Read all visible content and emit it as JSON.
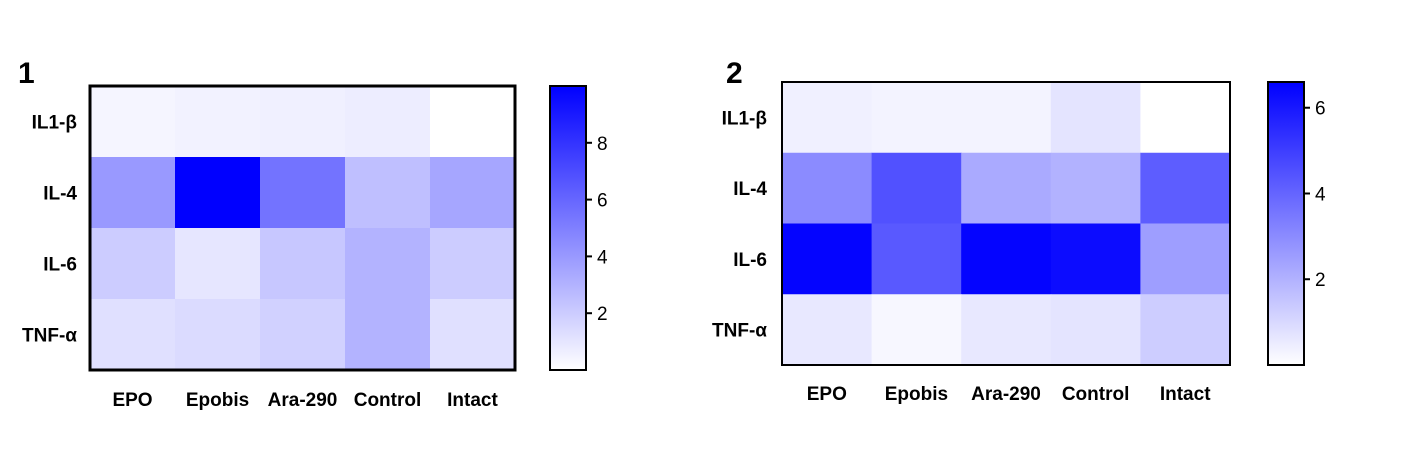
{
  "chart_data": [
    {
      "type": "heatmap",
      "panel_label": "1",
      "rows": [
        "IL1-β",
        "IL-4",
        "IL-6",
        "TNF-α"
      ],
      "columns": [
        "EPO",
        "Epobis",
        "Ara-290",
        "Control",
        "Intact"
      ],
      "values": [
        [
          0.4,
          0.5,
          0.6,
          0.7,
          0.0
        ],
        [
          4.0,
          10.0,
          5.5,
          2.5,
          3.5
        ],
        [
          2.0,
          1.0,
          2.2,
          3.0,
          2.0
        ],
        [
          1.2,
          1.4,
          1.8,
          3.0,
          1.2
        ]
      ],
      "colorbar": {
        "min": 0,
        "max": 10,
        "ticks": [
          2,
          4,
          6,
          8
        ]
      },
      "color_low": "#ffffff",
      "color_high": "#0000ff"
    },
    {
      "type": "heatmap",
      "panel_label": "2",
      "rows": [
        "IL1-β",
        "IL-4",
        "IL-6",
        "TNF-α"
      ],
      "columns": [
        "EPO",
        "Epobis",
        "Ara-290",
        "Control",
        "Intact"
      ],
      "values": [
        [
          0.4,
          0.3,
          0.3,
          0.7,
          0.0
        ],
        [
          3.0,
          4.5,
          2.2,
          2.0,
          4.2
        ],
        [
          6.5,
          4.3,
          6.5,
          6.3,
          2.5
        ],
        [
          0.6,
          0.2,
          0.6,
          0.7,
          1.3
        ]
      ],
      "colorbar": {
        "min": 0,
        "max": 6.6,
        "ticks": [
          2,
          4,
          6
        ]
      },
      "color_low": "#ffffff",
      "color_high": "#0000ff"
    }
  ]
}
